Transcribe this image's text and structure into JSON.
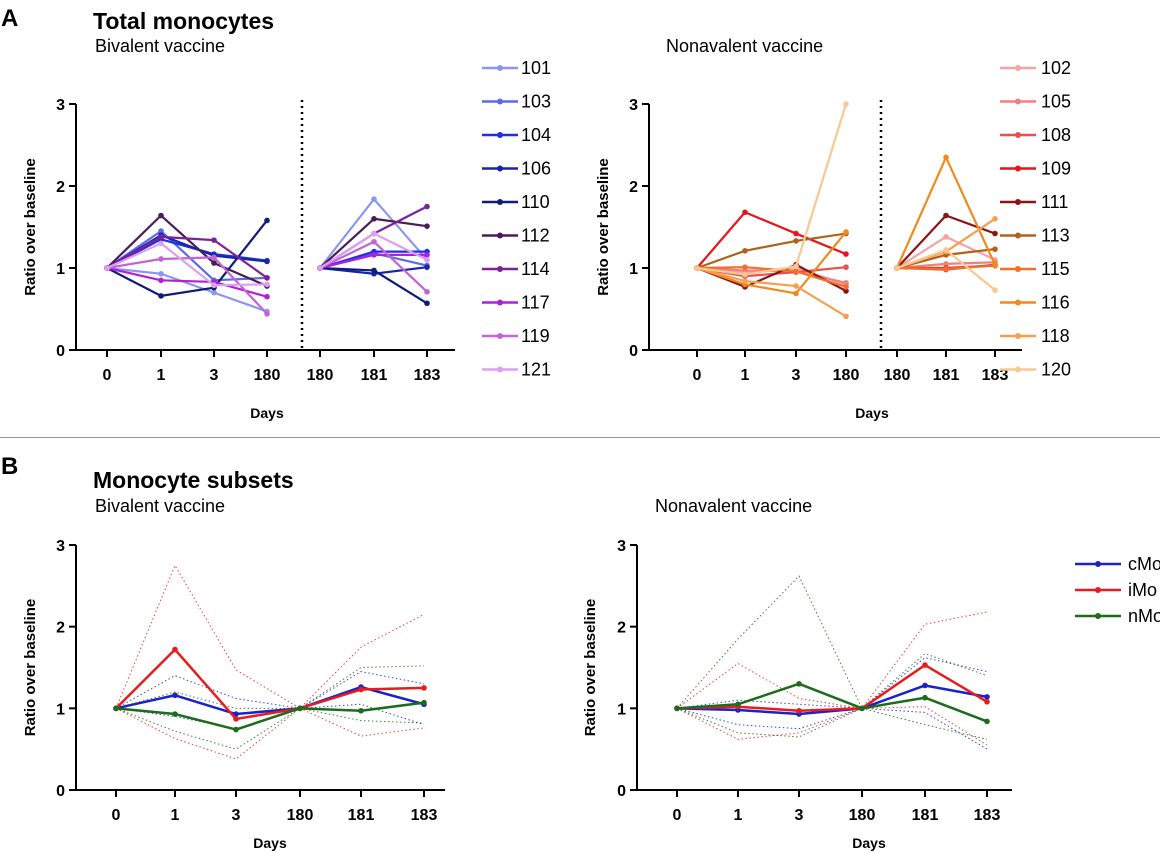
{
  "panels": {
    "a": {
      "letter": "A",
      "title": "Total monocytes",
      "left_subtitle": "Bivalent vaccine",
      "right_subtitle": "Nonavalent vaccine"
    },
    "b": {
      "letter": "B",
      "title": "Monocyte subsets",
      "left_subtitle": "Bivalent vaccine",
      "right_subtitle": "Nonavalent vaccine"
    }
  },
  "chart_data": [
    {
      "id": "a-bivalent",
      "type": "line",
      "title": "Bivalent vaccine",
      "xlabel": "Days",
      "ylabel": "Ratio over baseline",
      "ylim": [
        0,
        3
      ],
      "yticks": [
        0,
        1,
        2,
        3
      ],
      "categories": [
        "0",
        "1",
        "3",
        "180",
        "180",
        "181",
        "183"
      ],
      "break_after_index": 3,
      "legend_position": "right",
      "series": [
        {
          "name": "101",
          "color": "#8c96f0",
          "values": [
            1,
            0.93,
            0.7,
            0.47,
            1,
            1.84,
            1.1
          ]
        },
        {
          "name": "103",
          "color": "#5a6aea",
          "values": [
            1,
            1.45,
            0.85,
            0.88,
            1,
            1.18,
            1.03
          ]
        },
        {
          "name": "104",
          "color": "#1f30e0",
          "values": [
            1,
            1.35,
            1.17,
            1.09,
            1,
            1.2,
            1.2
          ]
        },
        {
          "name": "106",
          "color": "#1626a8",
          "values": [
            1,
            1.4,
            1.15,
            1.08,
            1,
            0.93,
            1.01
          ]
        },
        {
          "name": "110",
          "color": "#101c78",
          "values": [
            1,
            0.66,
            0.76,
            1.58,
            1,
            0.97,
            0.57
          ]
        },
        {
          "name": "112",
          "color": "#4a1c58",
          "values": [
            1,
            1.64,
            1.06,
            0.78,
            1,
            1.6,
            1.51
          ]
        },
        {
          "name": "114",
          "color": "#7a229a",
          "values": [
            1,
            1.38,
            1.34,
            0.88,
            1,
            1.42,
            1.75
          ]
        },
        {
          "name": "117",
          "color": "#b020d8",
          "values": [
            1,
            0.85,
            0.83,
            0.65,
            1,
            1.16,
            1.16
          ]
        },
        {
          "name": "119",
          "color": "#c264d8",
          "values": [
            1,
            1.11,
            1.13,
            0.44,
            1,
            1.32,
            0.71
          ]
        },
        {
          "name": "121",
          "color": "#dda0ee",
          "values": [
            1,
            1.3,
            0.79,
            0.8,
            1,
            1.42,
            1.1
          ]
        }
      ]
    },
    {
      "id": "a-nonavalent",
      "type": "line",
      "title": "Nonavalent vaccine",
      "xlabel": "Days",
      "ylabel": "Ratio over baseline",
      "ylim": [
        0,
        3
      ],
      "yticks": [
        0,
        1,
        2,
        3
      ],
      "categories": [
        "0",
        "1",
        "3",
        "180",
        "180",
        "181",
        "183"
      ],
      "break_after_index": 3,
      "legend_position": "right",
      "series": [
        {
          "name": "102",
          "color": "#f4a4a4",
          "values": [
            1,
            0.95,
            1.0,
            0.8,
            1,
            1.38,
            1.1
          ]
        },
        {
          "name": "105",
          "color": "#f08080",
          "values": [
            1,
            0.97,
            0.96,
            0.82,
            1,
            1.05,
            1.07
          ]
        },
        {
          "name": "108",
          "color": "#e85050",
          "values": [
            1,
            0.9,
            0.95,
            1.01,
            1,
            0.98,
            1.04
          ]
        },
        {
          "name": "109",
          "color": "#e8141c",
          "values": [
            1,
            1.68,
            1.42,
            1.17,
            1,
            1.0,
            1.03
          ]
        },
        {
          "name": "111",
          "color": "#8c1414",
          "values": [
            1,
            0.77,
            1.04,
            0.72,
            1,
            1.64,
            1.42
          ]
        },
        {
          "name": "113",
          "color": "#b0621c",
          "values": [
            1,
            1.21,
            1.33,
            1.42,
            1,
            1.16,
            1.23
          ]
        },
        {
          "name": "115",
          "color": "#f07028",
          "values": [
            1,
            1.01,
            0.96,
            0.77,
            1,
            0.99,
            1.03
          ]
        },
        {
          "name": "116",
          "color": "#f08a1c",
          "values": [
            1,
            0.8,
            0.69,
            1.44,
            1,
            2.35,
            1.04
          ]
        },
        {
          "name": "118",
          "color": "#f4a050",
          "values": [
            1,
            0.84,
            0.78,
            0.41,
            1,
            1.2,
            1.6
          ]
        },
        {
          "name": "120",
          "color": "#f8c890",
          "values": [
            1,
            0.92,
            1.02,
            3.0,
            1,
            1.22,
            0.73
          ]
        }
      ]
    },
    {
      "id": "b-bivalent",
      "type": "line",
      "title": "Bivalent vaccine",
      "xlabel": "Days",
      "ylabel": "Ratio over baseline",
      "ylim": [
        0,
        3
      ],
      "yticks": [
        0,
        1,
        2,
        3
      ],
      "categories": [
        "0",
        "1",
        "3",
        "180",
        "181",
        "183"
      ],
      "legend_position": "none",
      "series": [
        {
          "name": "cMo",
          "color": "#1c22c8",
          "values": [
            1,
            1.16,
            0.93,
            1.0,
            1.26,
            1.05
          ]
        },
        {
          "name": "iMo",
          "color": "#e81c1c",
          "values": [
            1,
            1.72,
            0.87,
            1.0,
            1.23,
            1.25
          ]
        },
        {
          "name": "nMo",
          "color": "#1c6c1c",
          "values": [
            1,
            0.93,
            0.74,
            1.0,
            0.97,
            1.07
          ]
        }
      ],
      "ranges": [
        {
          "name": "cMo",
          "color": "#1c22c8",
          "upper": [
            1,
            1.4,
            1.12,
            1.0,
            1.45,
            1.3
          ],
          "lower": [
            1,
            0.9,
            0.75,
            1.0,
            1.05,
            0.8
          ]
        },
        {
          "name": "iMo",
          "color": "#e81c1c",
          "upper": [
            1,
            2.75,
            1.47,
            1.0,
            1.75,
            2.15
          ],
          "lower": [
            1,
            0.63,
            0.38,
            1.0,
            0.66,
            0.76
          ]
        },
        {
          "name": "nMo",
          "color": "#1c6c1c",
          "upper": [
            1,
            1.2,
            1.0,
            1.0,
            1.5,
            1.52
          ],
          "lower": [
            1,
            0.72,
            0.5,
            1.0,
            0.85,
            0.82
          ]
        }
      ]
    },
    {
      "id": "b-nonavalent",
      "type": "line",
      "title": "Nonavalent vaccine",
      "xlabel": "Days",
      "ylabel": "Ratio over baseline",
      "ylim": [
        0,
        3
      ],
      "yticks": [
        0,
        1,
        2,
        3
      ],
      "categories": [
        "0",
        "1",
        "3",
        "180",
        "181",
        "183"
      ],
      "legend_position": "right",
      "series": [
        {
          "name": "cMo",
          "color": "#1c22c8",
          "values": [
            1,
            0.98,
            0.93,
            1.0,
            1.28,
            1.14
          ]
        },
        {
          "name": "iMo",
          "color": "#e81c1c",
          "values": [
            1,
            1.02,
            0.97,
            1.0,
            1.53,
            1.08
          ]
        },
        {
          "name": "nMo",
          "color": "#1c6c1c",
          "values": [
            1,
            1.05,
            1.3,
            1.0,
            1.13,
            0.84
          ]
        }
      ],
      "ranges": [
        {
          "name": "cMo",
          "color": "#1c22c8",
          "upper": [
            1,
            1.1,
            1.05,
            1.0,
            1.62,
            1.45
          ],
          "lower": [
            1,
            0.8,
            0.75,
            1.0,
            0.95,
            0.5
          ]
        },
        {
          "name": "iMo",
          "color": "#e81c1c",
          "upper": [
            1,
            1.55,
            1.12,
            1.0,
            2.03,
            2.18
          ],
          "lower": [
            1,
            0.62,
            0.7,
            1.0,
            1.02,
            0.55
          ]
        },
        {
          "name": "nMo",
          "color": "#1c6c1c",
          "upper": [
            1,
            1.85,
            2.62,
            1.0,
            1.67,
            1.4
          ],
          "lower": [
            1,
            0.7,
            0.65,
            1.0,
            0.8,
            0.62
          ]
        }
      ]
    }
  ]
}
